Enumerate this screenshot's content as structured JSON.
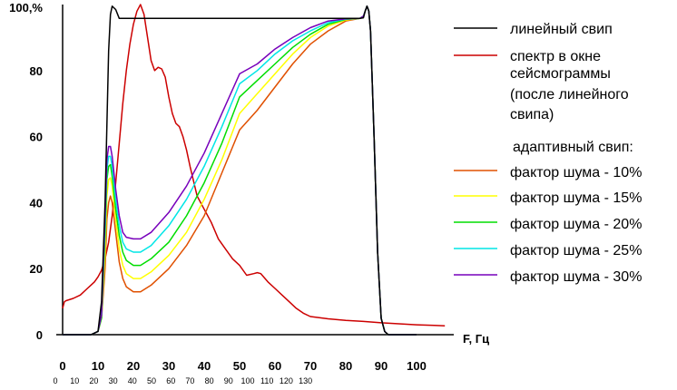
{
  "chart_data": {
    "type": "line",
    "y_top_label": "100,%",
    "x_axis_label": "F, Гц",
    "ylim": [
      0,
      100
    ],
    "xlim": [
      0,
      110
    ],
    "y_ticks": [
      "0",
      "20",
      "40",
      "60",
      "80"
    ],
    "x_ticks": [
      "0",
      "10",
      "20",
      "30",
      "40",
      "50",
      "60",
      "70",
      "80",
      "90",
      "100"
    ],
    "x_ticks_secondary": [
      "0",
      "10",
      "20",
      "30",
      "40",
      "50",
      "60",
      "70",
      "80",
      "90",
      "100",
      "110",
      "120",
      "130"
    ],
    "legend_subtitle": "адаптивный свип:",
    "grid": false,
    "series": [
      {
        "name": "линейный свип",
        "color": "#000000",
        "x": [
          0,
          8,
          10,
          11,
          12,
          13,
          13.5,
          14,
          15,
          16,
          20,
          40,
          60,
          80,
          84,
          85,
          85.5,
          86,
          86.5,
          87,
          88,
          89,
          90,
          91,
          92,
          100
        ],
        "y": [
          0,
          0,
          1,
          10,
          40,
          86,
          97,
          99.5,
          98.5,
          95.8,
          95.8,
          95.8,
          95.8,
          95.8,
          95.8,
          96,
          98,
          99.5,
          98,
          92,
          60,
          25,
          5,
          1,
          0,
          0
        ]
      },
      {
        "name": "спектр в окне сейсмограммы (после линейного свипа)",
        "color": "#cc0000",
        "x": [
          0,
          0.5,
          1,
          3,
          5,
          7,
          8,
          9,
          10,
          11,
          12,
          13,
          14,
          15,
          16,
          17,
          18,
          19,
          20,
          21,
          22,
          23,
          24,
          25,
          26,
          27,
          28,
          29,
          30,
          31,
          32,
          33,
          34,
          35,
          36,
          38,
          40,
          42,
          44,
          46,
          48,
          50,
          52,
          54,
          55,
          56,
          58,
          60,
          62,
          64,
          66,
          68,
          70,
          75,
          80,
          85,
          90,
          95,
          100,
          105,
          108
        ],
        "y": [
          8,
          10,
          10.3,
          11,
          12,
          14,
          15,
          16,
          17.5,
          19.5,
          23,
          28,
          36,
          46,
          58,
          70,
          80,
          88,
          94,
          98,
          100,
          97,
          90,
          83,
          80,
          81,
          80.5,
          78,
          72,
          67,
          64,
          63,
          60,
          56,
          51,
          42,
          38,
          34,
          29,
          26,
          23,
          21,
          18,
          18.5,
          18.8,
          18.5,
          16,
          14,
          12,
          10,
          8,
          6.5,
          5.5,
          4.8,
          4.3,
          4,
          3.6,
          3.3,
          3,
          2.8,
          2.7
        ]
      },
      {
        "name": "фактор шума - 10%",
        "color": "#e05000",
        "x": [
          0,
          8,
          10,
          11,
          12,
          12.5,
          13,
          13.5,
          14,
          15,
          16,
          17,
          18,
          20,
          22,
          25,
          30,
          35,
          40,
          45,
          50,
          55,
          60,
          65,
          70,
          75,
          80,
          84,
          85,
          85.5,
          86,
          86.5,
          87,
          88,
          89,
          90,
          91,
          92,
          100
        ],
        "y": [
          0,
          0,
          1,
          5,
          20,
          35,
          40,
          42,
          40,
          31,
          22,
          17,
          14.5,
          13,
          13,
          15,
          20,
          27,
          36,
          49,
          62,
          68,
          75,
          82,
          88,
          92,
          95,
          95.8,
          96.5,
          98,
          99.5,
          98,
          92,
          60,
          25,
          5,
          1,
          0,
          0
        ]
      },
      {
        "name": "фактор шума - 15%",
        "color": "#ffff00",
        "x": [
          0,
          8,
          10,
          11,
          12,
          12.5,
          13,
          13.5,
          14,
          15,
          16,
          17,
          18,
          20,
          22,
          25,
          30,
          35,
          40,
          45,
          50,
          55,
          60,
          65,
          70,
          75,
          80,
          84,
          85,
          85.5,
          86,
          86.5,
          87,
          88,
          89,
          90,
          91,
          92,
          100
        ],
        "y": [
          0,
          0,
          1,
          5,
          25,
          42,
          47,
          47.5,
          45,
          35,
          26,
          21,
          18.5,
          17,
          17,
          19,
          24,
          31,
          41,
          53,
          67,
          73,
          79,
          85,
          90,
          93.5,
          95.3,
          95.8,
          96.5,
          98,
          99.5,
          98,
          92,
          60,
          25,
          5,
          1,
          0,
          0
        ]
      },
      {
        "name": "фактор шума - 20%",
        "color": "#00dd00",
        "x": [
          0,
          8,
          10,
          11,
          12,
          12.5,
          13,
          13.5,
          14,
          15,
          16,
          17,
          18,
          20,
          22,
          25,
          30,
          35,
          40,
          45,
          50,
          55,
          60,
          65,
          70,
          75,
          80,
          84,
          85,
          85.5,
          86,
          86.5,
          87,
          88,
          89,
          90,
          91,
          92,
          100
        ],
        "y": [
          0,
          0,
          1,
          5,
          30,
          47,
          51,
          51.5,
          48,
          38,
          30,
          25,
          22.5,
          21,
          21,
          23,
          28,
          36,
          46,
          58,
          72,
          77,
          82,
          87,
          91,
          94,
          95.5,
          95.8,
          96.5,
          98,
          99.5,
          98,
          92,
          60,
          25,
          5,
          1,
          0,
          0
        ]
      },
      {
        "name": "фактор шума - 25%",
        "color": "#00e6e6",
        "x": [
          0,
          8,
          10,
          11,
          12,
          12.5,
          13,
          13.5,
          14,
          15,
          16,
          17,
          18,
          20,
          22,
          25,
          30,
          35,
          40,
          45,
          50,
          55,
          60,
          65,
          70,
          75,
          80,
          84,
          85,
          85.5,
          86,
          86.5,
          87,
          88,
          89,
          90,
          91,
          92,
          100
        ],
        "y": [
          0,
          0,
          1,
          6,
          33,
          50,
          54,
          54,
          51,
          41,
          33,
          28,
          26,
          25,
          25,
          27,
          33,
          41,
          51,
          63,
          76,
          80,
          85,
          89,
          92,
          94.5,
          95.6,
          95.8,
          96.5,
          98,
          99.5,
          98,
          92,
          60,
          25,
          5,
          1,
          0,
          0
        ]
      },
      {
        "name": "фактор шума - 30%",
        "color": "#7700bb",
        "x": [
          0,
          8,
          10,
          11,
          12,
          12.5,
          13,
          13.5,
          14,
          15,
          16,
          17,
          18,
          20,
          22,
          25,
          30,
          35,
          40,
          45,
          50,
          55,
          60,
          65,
          70,
          75,
          80,
          84,
          85,
          85.5,
          86,
          86.5,
          87,
          88,
          89,
          90,
          91,
          92,
          100
        ],
        "y": [
          0,
          0,
          1,
          6,
          36,
          53,
          57,
          57,
          54,
          44,
          36,
          31,
          29.5,
          29,
          29,
          31,
          37,
          45,
          55,
          67,
          79,
          82,
          86.5,
          90,
          93,
          95,
          95.7,
          95.8,
          96.5,
          98,
          99.5,
          98,
          92,
          60,
          25,
          5,
          1,
          0,
          0
        ]
      }
    ]
  }
}
